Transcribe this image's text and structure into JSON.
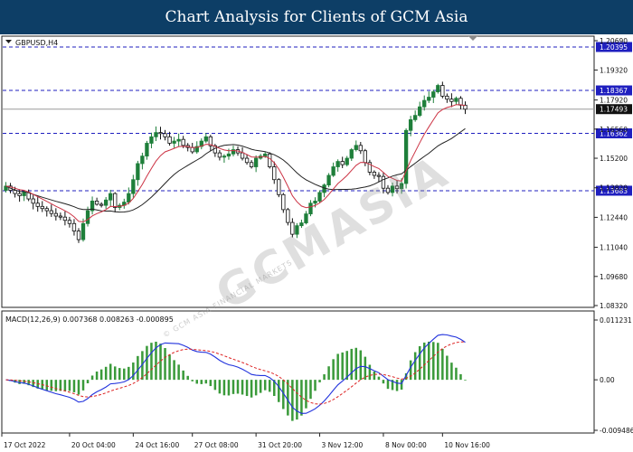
{
  "header": {
    "title": "Chart Analysis for Clients of GCM Asia"
  },
  "watermark": {
    "text": "GCMASIA",
    "sub": "© GCM ASIA FINANCIAL MARKETS"
  },
  "chart_data": [
    {
      "type": "candlestick",
      "title": "GBPUSD,H4",
      "ylim": [
        1.0832,
        1.2069
      ],
      "y_ticks": [
        "1.20690",
        "1.19320",
        "1.17920",
        "1.16560",
        "1.15200",
        "1.13820",
        "1.12440",
        "1.11040",
        "1.09680",
        "1.08320"
      ],
      "current_price": "1.17493",
      "levels": [
        {
          "label": "1.20395",
          "value": 1.20395,
          "color": "#1f1fbf"
        },
        {
          "label": "1.18367",
          "value": 1.18367,
          "color": "#1f1fbf"
        },
        {
          "label": "1.16362",
          "value": 1.16362,
          "color": "#1f1fbf"
        },
        {
          "label": "1.13683",
          "value": 1.13683,
          "color": "#1f1fbf"
        }
      ],
      "x_labels": [
        "17 Oct 2022",
        "20 Oct 04:00",
        "24 Oct 16:00",
        "27 Oct 08:00",
        "31 Oct 20:00",
        "3 Nov 12:00",
        "8 Nov 00:00",
        "10 Nov 16:00"
      ],
      "series": [
        {
          "name": "ma_fast",
          "color": "#cc3344"
        },
        {
          "name": "ma_slow",
          "color": "#222222"
        }
      ],
      "colors": {
        "up": "#1e7f3a",
        "down": "#0e0e0e"
      },
      "close": [
        1.139,
        1.137,
        1.1355,
        1.1345,
        1.136,
        1.133,
        1.131,
        1.1295,
        1.1285,
        1.1275,
        1.1262,
        1.125,
        1.1245,
        1.123,
        1.1215,
        1.118,
        1.114,
        1.1215,
        1.1275,
        1.132,
        1.1305,
        1.13,
        1.1325,
        1.1355,
        1.129,
        1.13,
        1.1315,
        1.1355,
        1.142,
        1.1495,
        1.153,
        1.159,
        1.162,
        1.164,
        1.1635,
        1.162,
        1.159,
        1.16,
        1.1608,
        1.158,
        1.157,
        1.155,
        1.1575,
        1.16,
        1.162,
        1.1578,
        1.1545,
        1.1525,
        1.153,
        1.154,
        1.156,
        1.1545,
        1.152,
        1.15,
        1.148,
        1.152,
        1.153,
        1.154,
        1.148,
        1.142,
        1.135,
        1.128,
        1.122,
        1.1165,
        1.1205,
        1.1218,
        1.126,
        1.131,
        1.132,
        1.136,
        1.1395,
        1.144,
        1.148,
        1.1505,
        1.149,
        1.152,
        1.156,
        1.158,
        1.1555,
        1.15,
        1.1455,
        1.144,
        1.1435,
        1.138,
        1.136,
        1.139,
        1.1378,
        1.1402,
        1.165,
        1.17,
        1.172,
        1.176,
        1.179,
        1.1805,
        1.183,
        1.186,
        1.181,
        1.1796,
        1.1785,
        1.18,
        1.1768,
        1.1749
      ]
    },
    {
      "type": "macd",
      "title": "MACD(12,26,9) 0.007368 0.008263 -0.000895",
      "params": "MACD(12,26,9)",
      "values_text": "0.007368 0.008263 -0.000895",
      "macd": 0.007368,
      "signal": 0.008263,
      "histogram": -0.000895,
      "y_ticks": [
        "0.011231",
        "0.00",
        "-0.009486"
      ],
      "ylim": [
        -0.009486,
        0.011231
      ],
      "series": [
        {
          "name": "MACD",
          "color": "#2233dd"
        },
        {
          "name": "Signal",
          "color": "#dd2222"
        }
      ],
      "histogram_color": "#3a9a3a"
    }
  ]
}
